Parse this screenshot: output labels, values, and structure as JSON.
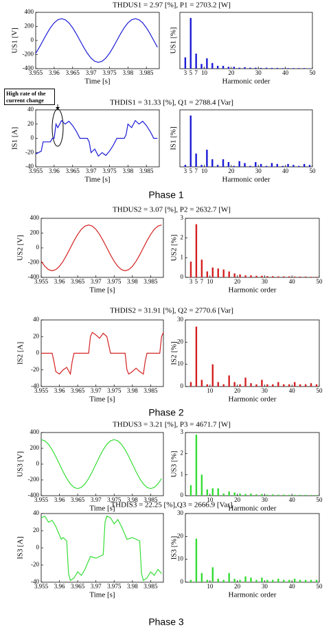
{
  "phase_labels": [
    "Phase 1",
    "Phase 2",
    "Phase 3"
  ],
  "annotation": "High rate of the current change",
  "chart_data": [
    {
      "type": "line",
      "title": "THDUS1 = 2.97 [%], P1 = 2703.2 [W]",
      "x_label": "Time [s]",
      "y_label": "US1 [V]",
      "color": "#1a1ad6",
      "x": [
        3.955,
        3.956,
        3.957,
        3.958,
        3.959,
        3.96,
        3.961,
        3.962,
        3.963,
        3.964,
        3.965,
        3.966,
        3.967,
        3.968,
        3.969,
        3.97,
        3.971,
        3.972,
        3.973,
        3.974,
        3.975,
        3.976,
        3.977,
        3.978,
        3.979,
        3.98,
        3.981,
        3.982,
        3.983,
        3.984,
        3.985,
        3.986,
        3.987,
        3.988
      ],
      "values": [
        -182,
        -96,
        0,
        96,
        182,
        251,
        295,
        310,
        295,
        251,
        182,
        96,
        0,
        -96,
        -182,
        -251,
        -295,
        -310,
        -295,
        -251,
        -182,
        -96,
        0,
        96,
        182,
        251,
        295,
        310,
        295,
        251,
        182,
        96,
        0,
        -96
      ],
      "xlim": [
        3.955,
        3.9885
      ],
      "xticks": [
        3.955,
        3.96,
        3.965,
        3.97,
        3.975,
        3.98,
        3.985
      ],
      "ylim": [
        -400,
        400
      ],
      "yticks": [
        -400,
        -200,
        0,
        200,
        400
      ]
    },
    {
      "type": "bar",
      "x_label": "Harmonic order",
      "y_label": "US1 [%]",
      "color": "#1a1ad6",
      "x": [
        3,
        5,
        7,
        9,
        11,
        13,
        15,
        17,
        19,
        21,
        23,
        25,
        27,
        29,
        31,
        33,
        35,
        37,
        39,
        41,
        43,
        45,
        47,
        49
      ],
      "values": [
        0.6,
        2.7,
        0.8,
        0.25,
        0.55,
        0.3,
        0.15,
        0.15,
        0.1,
        0.1,
        0.05,
        0.08,
        0.05,
        0.05,
        0.04,
        0.05,
        0.04,
        0.04,
        0.03,
        0.03,
        0.03,
        0.03,
        0.03,
        0.02
      ],
      "xlim": [
        1,
        50
      ],
      "xticks": [
        3,
        5,
        7,
        10,
        20,
        30,
        40,
        50
      ],
      "ylim": [
        0,
        3
      ]
    },
    {
      "type": "line",
      "title": "THDIS1 = 31.33 [%], Q1 = 2788.4 [Var]",
      "x_label": "Time [s]",
      "y_label": "IS1 [A]",
      "color": "#1a1ad6",
      "x": [
        3.955,
        3.9565,
        3.957,
        3.959,
        3.9595,
        3.96,
        3.9605,
        3.961,
        3.962,
        3.963,
        3.964,
        3.965,
        3.966,
        3.9665,
        3.967,
        3.969,
        3.9695,
        3.97,
        3.971,
        3.972,
        3.973,
        3.974,
        3.975,
        3.976,
        3.9765,
        3.977,
        3.979,
        3.9795,
        3.98,
        3.981,
        3.982,
        3.983,
        3.984,
        3.985,
        3.986,
        3.9865,
        3.987,
        3.988
      ],
      "values": [
        -22,
        -18,
        -5,
        -5,
        0,
        0,
        20,
        15,
        25,
        20,
        24,
        18,
        10,
        5,
        0,
        0,
        -5,
        -20,
        -15,
        -25,
        -20,
        -24,
        -18,
        -10,
        -5,
        0,
        0,
        5,
        20,
        15,
        25,
        20,
        24,
        18,
        10,
        5,
        0,
        0
      ],
      "xlim": [
        3.955,
        3.9885
      ],
      "xticks": [
        3.955,
        3.96,
        3.965,
        3.97,
        3.975,
        3.98,
        3.985
      ],
      "ylim": [
        -40,
        40
      ],
      "yticks": [
        -40,
        -20,
        0,
        20,
        40
      ]
    },
    {
      "type": "bar",
      "x_label": "Harmonic order",
      "y_label": "IS1 [%]",
      "color": "#1a1ad6",
      "x": [
        3,
        5,
        7,
        9,
        11,
        13,
        15,
        17,
        19,
        21,
        23,
        25,
        27,
        29,
        31,
        33,
        35,
        37,
        39,
        41,
        43,
        45,
        47,
        49
      ],
      "values": [
        1,
        27,
        7,
        1,
        9,
        4,
        1,
        4,
        2.5,
        0.5,
        3,
        2,
        0.5,
        2.5,
        1.5,
        0.5,
        2,
        1.5,
        0.5,
        1.5,
        1,
        0.5,
        1.5,
        1
      ],
      "xlim": [
        1,
        50
      ],
      "xticks": [
        3,
        5,
        7,
        10,
        20,
        30,
        40,
        50
      ],
      "ylim": [
        0,
        30
      ]
    },
    {
      "type": "line",
      "title": "THDUS2 = 3.07 [%], P2 = 2632.7 [W]",
      "x_label": "Time [s]",
      "y_label": "US2 [V]",
      "color": "#d42020",
      "x": [
        3.955,
        3.956,
        3.957,
        3.958,
        3.959,
        3.96,
        3.961,
        3.962,
        3.963,
        3.964,
        3.965,
        3.966,
        3.967,
        3.968,
        3.969,
        3.97,
        3.971,
        3.972,
        3.973,
        3.974,
        3.975,
        3.976,
        3.977,
        3.978,
        3.979,
        3.98,
        3.981,
        3.982,
        3.983,
        3.984,
        3.985,
        3.986,
        3.987,
        3.988
      ],
      "values": [
        -182,
        -251,
        -295,
        -310,
        -295,
        -251,
        -182,
        -96,
        0,
        96,
        182,
        251,
        295,
        310,
        295,
        251,
        182,
        96,
        0,
        -96,
        -182,
        -251,
        -295,
        -310,
        -295,
        -251,
        -182,
        -96,
        0,
        96,
        182,
        251,
        295,
        310
      ],
      "xlim": [
        3.955,
        3.9885
      ],
      "xticks": [
        3.955,
        3.96,
        3.965,
        3.97,
        3.975,
        3.98,
        3.985
      ],
      "ylim": [
        -400,
        400
      ],
      "yticks": [
        -400,
        -200,
        0,
        200,
        400
      ]
    },
    {
      "type": "bar",
      "x_label": "Harmonic order",
      "y_label": "US2 [%]",
      "color": "#d42020",
      "x": [
        3,
        5,
        7,
        9,
        11,
        13,
        15,
        17,
        19,
        21,
        23,
        25,
        27,
        29,
        31,
        33,
        35,
        37,
        39,
        41,
        43,
        45,
        47,
        49
      ],
      "values": [
        0.8,
        2.7,
        0.9,
        0.3,
        0.5,
        0.45,
        0.4,
        0.3,
        0.2,
        0.15,
        0.1,
        0.1,
        0.08,
        0.08,
        0.06,
        0.06,
        0.05,
        0.05,
        0.05,
        0.04,
        0.04,
        0.04,
        0.03,
        0.03
      ],
      "xlim": [
        1,
        50
      ],
      "xticks": [
        3,
        5,
        7,
        10,
        20,
        30,
        40,
        50
      ],
      "ylim": [
        0,
        3
      ],
      "yticks": [
        0,
        1,
        2,
        3
      ]
    },
    {
      "type": "line",
      "title": "THDIS2 = 31.91 [%], Q2 = 2770.6 [Var]",
      "x_label": "Time [s]",
      "y_label": "IS2 [A]",
      "color": "#d42020",
      "x": [
        3.955,
        3.958,
        3.9585,
        3.959,
        3.96,
        3.961,
        3.962,
        3.963,
        3.9635,
        3.964,
        3.968,
        3.9685,
        3.969,
        3.97,
        3.971,
        3.972,
        3.973,
        3.9735,
        3.974,
        3.978,
        3.9785,
        3.979,
        3.98,
        3.981,
        3.982,
        3.983,
        3.9835,
        3.984,
        3.9875,
        3.988,
        3.9885
      ],
      "values": [
        0,
        0,
        -10,
        -22,
        -25,
        -20,
        -17,
        -25,
        -10,
        0,
        0,
        20,
        25,
        22,
        18,
        24,
        20,
        10,
        0,
        0,
        -20,
        -25,
        -22,
        -18,
        -22,
        -25,
        -10,
        0,
        0,
        20,
        25
      ],
      "xlim": [
        3.955,
        3.9885
      ],
      "xticks": [
        3.955,
        3.96,
        3.965,
        3.97,
        3.975,
        3.98,
        3.985
      ],
      "ylim": [
        -40,
        40
      ],
      "yticks": [
        -40,
        -20,
        0,
        20,
        40
      ]
    },
    {
      "type": "bar",
      "x_label": "Harmonic order",
      "y_label": "IS2 [%]",
      "color": "#d42020",
      "x": [
        3,
        5,
        7,
        9,
        11,
        13,
        15,
        17,
        19,
        21,
        23,
        25,
        27,
        29,
        31,
        33,
        35,
        37,
        39,
        41,
        43,
        45,
        47,
        49
      ],
      "values": [
        2,
        27,
        3,
        1,
        10,
        2,
        1,
        5,
        2,
        1,
        4,
        1.5,
        1,
        3,
        1,
        1,
        2,
        1,
        1,
        2,
        1,
        1,
        1.5,
        1
      ],
      "xlim": [
        1,
        50
      ],
      "xticks": [
        10,
        20,
        30,
        40,
        50
      ],
      "ylim": [
        0,
        30
      ],
      "yticks": [
        0,
        10,
        20,
        30
      ]
    },
    {
      "type": "line",
      "title": "THDUS3 = 3.21 [%], P3 = 4671.7 [W]",
      "x_label": "Time [s]",
      "y_label": "US3 [V]",
      "color": "#33dd33",
      "x": [
        3.955,
        3.956,
        3.957,
        3.958,
        3.959,
        3.96,
        3.961,
        3.962,
        3.963,
        3.964,
        3.965,
        3.966,
        3.967,
        3.968,
        3.969,
        3.97,
        3.971,
        3.972,
        3.973,
        3.974,
        3.975,
        3.976,
        3.977,
        3.978,
        3.979,
        3.98,
        3.981,
        3.982,
        3.983,
        3.984,
        3.985,
        3.986,
        3.987,
        3.988
      ],
      "values": [
        310,
        295,
        251,
        182,
        96,
        0,
        -96,
        -182,
        -251,
        -295,
        -310,
        -295,
        -251,
        -182,
        -96,
        0,
        96,
        182,
        251,
        295,
        310,
        295,
        251,
        182,
        96,
        0,
        -96,
        -182,
        -251,
        -295,
        -310,
        -295,
        -251,
        -182
      ],
      "xlim": [
        3.955,
        3.9885
      ],
      "xticks": [
        3.955,
        3.96,
        3.965,
        3.97,
        3.975,
        3.98,
        3.985
      ],
      "ylim": [
        -400,
        400
      ],
      "yticks": [
        -400,
        -200,
        0,
        200,
        400
      ]
    },
    {
      "type": "bar",
      "x_label": "Harmonic order",
      "y_label": "US3 [%]",
      "color": "#33dd33",
      "x": [
        3,
        5,
        7,
        9,
        11,
        13,
        15,
        17,
        19,
        21,
        23,
        25,
        27,
        29,
        31,
        33,
        35,
        37,
        39,
        41,
        43,
        45,
        47,
        49
      ],
      "values": [
        0.5,
        2.9,
        1.0,
        0.3,
        0.35,
        0.35,
        0.1,
        0.2,
        0.15,
        0.1,
        0.08,
        0.1,
        0.06,
        0.08,
        0.05,
        0.06,
        0.05,
        0.05,
        0.04,
        0.04,
        0.04,
        0.04,
        0.03,
        0.03
      ],
      "xlim": [
        1,
        50
      ],
      "xticks": [
        10,
        20,
        30,
        40,
        50
      ],
      "ylim": [
        0,
        3
      ],
      "yticks": [
        0,
        1,
        2,
        3
      ]
    },
    {
      "type": "line",
      "title": "THDIS3 = 22.25 [%],Q3 = 2666.9 [Var]",
      "x_label": "Time [s]",
      "y_label": "IS3 [A]",
      "color": "#33dd33",
      "x": [
        3.955,
        3.956,
        3.957,
        3.958,
        3.959,
        3.96,
        3.9605,
        3.961,
        3.962,
        3.9625,
        3.963,
        3.964,
        3.965,
        3.966,
        3.967,
        3.968,
        3.9685,
        3.97,
        3.972,
        3.9725,
        3.973,
        3.974,
        3.975,
        3.976,
        3.977,
        3.978,
        3.9785,
        3.98,
        3.982,
        3.9825,
        3.983,
        3.984,
        3.985,
        3.986,
        3.987,
        3.988
      ],
      "values": [
        35,
        37,
        30,
        32,
        25,
        15,
        10,
        12,
        8,
        -30,
        -38,
        -35,
        -28,
        -32,
        -25,
        -15,
        -10,
        -12,
        -8,
        30,
        37,
        35,
        28,
        33,
        25,
        15,
        10,
        12,
        8,
        -30,
        -38,
        -35,
        -28,
        -32,
        -25,
        -30
      ],
      "xlim": [
        3.955,
        3.9885
      ],
      "xticks": [
        3.955,
        3.96,
        3.965,
        3.97,
        3.975,
        3.98,
        3.985
      ],
      "ylim": [
        -40,
        40
      ],
      "yticks": [
        -40,
        -20,
        0,
        20,
        40
      ]
    },
    {
      "type": "bar",
      "x_label": "Harmonic order",
      "y_label": "IS3 [%]",
      "color": "#33dd33",
      "x": [
        3,
        5,
        7,
        9,
        11,
        13,
        15,
        17,
        19,
        21,
        23,
        25,
        27,
        29,
        31,
        33,
        35,
        37,
        39,
        41,
        43,
        45,
        47,
        49
      ],
      "values": [
        1,
        19,
        4,
        1,
        6.5,
        1.5,
        1,
        4,
        1.5,
        1,
        2.5,
        2,
        1,
        2,
        1,
        1,
        1.5,
        1,
        1,
        1.5,
        1,
        1,
        1,
        1
      ],
      "xlim": [
        1,
        50
      ],
      "xticks": [
        10,
        20,
        30,
        40,
        50
      ],
      "ylim": [
        0,
        30
      ],
      "yticks": [
        0,
        10,
        20,
        30
      ]
    }
  ]
}
